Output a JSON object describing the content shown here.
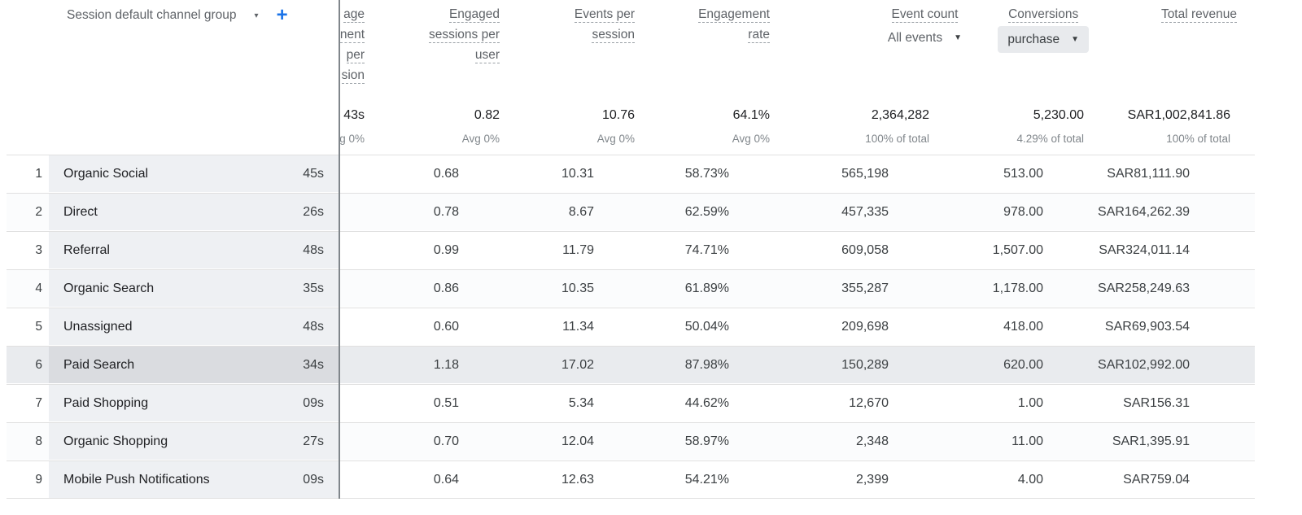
{
  "header": {
    "dimension_label": "Session default channel group",
    "dimension_caret": "▾",
    "add_label": "+",
    "columns": [
      {
        "id": "avg_engagement",
        "lines": [
          "age",
          "nent",
          "per",
          "sion"
        ]
      },
      {
        "id": "engaged_sessions_per_user",
        "lines": [
          "Engaged",
          "sessions per",
          "user"
        ]
      },
      {
        "id": "events_per_session",
        "lines": [
          "Events per",
          "session"
        ]
      },
      {
        "id": "engagement_rate",
        "lines": [
          "Engagement",
          "rate"
        ]
      },
      {
        "id": "event_count",
        "lines": [
          "Event count"
        ],
        "selector": "All events"
      },
      {
        "id": "conversions",
        "lines": [
          "Conversions"
        ],
        "selector": "purchase"
      },
      {
        "id": "total_revenue",
        "lines": [
          "Total revenue"
        ]
      }
    ]
  },
  "totals": {
    "avg_engagement": {
      "value": "43s",
      "sub": "g 0%"
    },
    "engaged_sessions_per_user": {
      "value": "0.82",
      "sub": "Avg 0%"
    },
    "events_per_session": {
      "value": "10.76",
      "sub": "Avg 0%"
    },
    "engagement_rate": {
      "value": "64.1%",
      "sub": "Avg 0%"
    },
    "event_count": {
      "value": "2,364,282",
      "sub": "100% of total"
    },
    "conversions": {
      "value": "5,230.00",
      "sub": "4.29% of total"
    },
    "total_revenue": {
      "value": "SAR1,002,841.86",
      "sub": "100% of total"
    }
  },
  "rows": [
    {
      "index": "1",
      "channel": "Organic Social",
      "avg_engagement": "45s",
      "engaged_sessions_per_user": "0.68",
      "events_per_session": "10.31",
      "engagement_rate": "58.73%",
      "event_count": "565,198",
      "conversions": "513.00",
      "total_revenue": "SAR81,111.90"
    },
    {
      "index": "2",
      "channel": "Direct",
      "avg_engagement": "26s",
      "engaged_sessions_per_user": "0.78",
      "events_per_session": "8.67",
      "engagement_rate": "62.59%",
      "event_count": "457,335",
      "conversions": "978.00",
      "total_revenue": "SAR164,262.39"
    },
    {
      "index": "3",
      "channel": "Referral",
      "avg_engagement": "48s",
      "engaged_sessions_per_user": "0.99",
      "events_per_session": "11.79",
      "engagement_rate": "74.71%",
      "event_count": "609,058",
      "conversions": "1,507.00",
      "total_revenue": "SAR324,011.14"
    },
    {
      "index": "4",
      "channel": "Organic Search",
      "avg_engagement": "35s",
      "engaged_sessions_per_user": "0.86",
      "events_per_session": "10.35",
      "engagement_rate": "61.89%",
      "event_count": "355,287",
      "conversions": "1,178.00",
      "total_revenue": "SAR258,249.63"
    },
    {
      "index": "5",
      "channel": "Unassigned",
      "avg_engagement": "48s",
      "engaged_sessions_per_user": "0.60",
      "events_per_session": "11.34",
      "engagement_rate": "50.04%",
      "event_count": "209,698",
      "conversions": "418.00",
      "total_revenue": "SAR69,903.54"
    },
    {
      "index": "6",
      "channel": "Paid Search",
      "avg_engagement": "34s",
      "engaged_sessions_per_user": "1.18",
      "events_per_session": "17.02",
      "engagement_rate": "87.98%",
      "event_count": "150,289",
      "conversions": "620.00",
      "total_revenue": "SAR102,992.00"
    },
    {
      "index": "7",
      "channel": "Paid Shopping",
      "avg_engagement": "09s",
      "engaged_sessions_per_user": "0.51",
      "events_per_session": "5.34",
      "engagement_rate": "44.62%",
      "event_count": "12,670",
      "conversions": "1.00",
      "total_revenue": "SAR156.31"
    },
    {
      "index": "8",
      "channel": "Organic Shopping",
      "avg_engagement": "27s",
      "engaged_sessions_per_user": "0.70",
      "events_per_session": "12.04",
      "engagement_rate": "58.97%",
      "event_count": "2,348",
      "conversions": "11.00",
      "total_revenue": "SAR1,395.91"
    },
    {
      "index": "9",
      "channel": "Mobile Push Notifications",
      "avg_engagement": "09s",
      "engaged_sessions_per_user": "0.64",
      "events_per_session": "12.63",
      "engagement_rate": "54.21%",
      "event_count": "2,399",
      "conversions": "4.00",
      "total_revenue": "SAR759.04"
    }
  ]
}
